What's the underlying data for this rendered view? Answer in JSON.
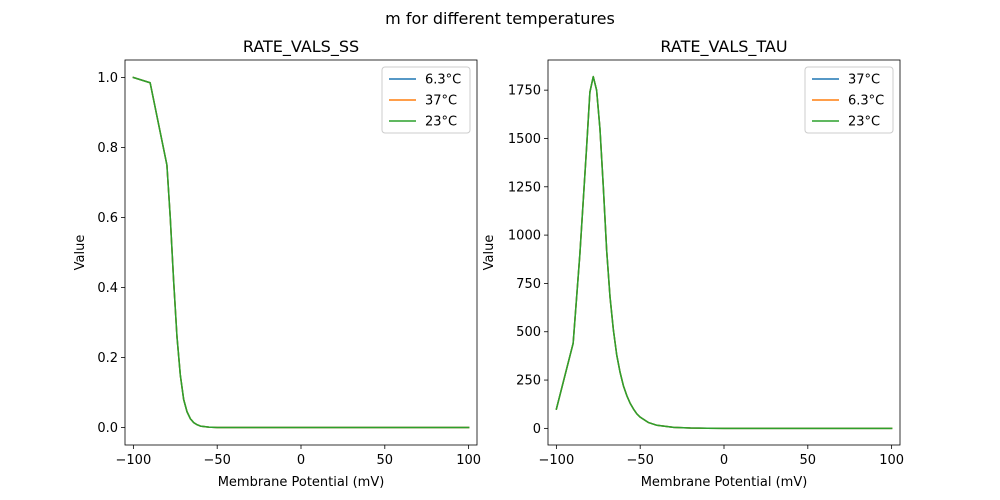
{
  "figure": {
    "suptitle": "m for different temperatures"
  },
  "chart_data": [
    {
      "type": "line",
      "title": "RATE_VALS_SS",
      "xlabel": "Membrane Potential (mV)",
      "ylabel": "Value",
      "xlim": [
        -105,
        105
      ],
      "ylim": [
        -0.05,
        1.05
      ],
      "xticks": [
        -100,
        -50,
        0,
        50,
        100
      ],
      "xtick_labels": [
        "−100",
        "−50",
        "0",
        "50",
        "100"
      ],
      "yticks": [
        0.0,
        0.2,
        0.4,
        0.6,
        0.8,
        1.0
      ],
      "ytick_labels": [
        "0.0",
        "0.2",
        "0.4",
        "0.6",
        "0.8",
        "1.0"
      ],
      "grid": false,
      "legend": "top-right",
      "x": [
        -100,
        -90,
        -80,
        -78,
        -76,
        -74,
        -72,
        -70,
        -68,
        -66,
        -64,
        -62,
        -60,
        -55,
        -50,
        0,
        50,
        100
      ],
      "series": [
        {
          "name": "6.3°C",
          "color": "#1f77b4",
          "values": [
            1.0,
            0.985,
            0.75,
            0.6,
            0.42,
            0.26,
            0.15,
            0.08,
            0.045,
            0.025,
            0.014,
            0.008,
            0.004,
            0.001,
            0.0,
            0.0,
            0.0,
            0.0
          ]
        },
        {
          "name": "37°C",
          "color": "#ff7f0e",
          "values": [
            1.0,
            0.985,
            0.75,
            0.6,
            0.42,
            0.26,
            0.15,
            0.08,
            0.045,
            0.025,
            0.014,
            0.008,
            0.004,
            0.001,
            0.0,
            0.0,
            0.0,
            0.0
          ]
        },
        {
          "name": "23°C",
          "color": "#2ca02c",
          "values": [
            1.0,
            0.985,
            0.75,
            0.6,
            0.42,
            0.26,
            0.15,
            0.08,
            0.045,
            0.025,
            0.014,
            0.008,
            0.004,
            0.001,
            0.0,
            0.0,
            0.0,
            0.0
          ]
        }
      ]
    },
    {
      "type": "line",
      "title": "RATE_VALS_TAU",
      "xlabel": "Membrane Potential (mV)",
      "ylabel": "Value",
      "xlim": [
        -105,
        105
      ],
      "ylim": [
        -86,
        1906
      ],
      "xticks": [
        -100,
        -50,
        0,
        50,
        100
      ],
      "xtick_labels": [
        "−100",
        "−50",
        "0",
        "50",
        "100"
      ],
      "yticks": [
        0,
        250,
        500,
        750,
        1000,
        1250,
        1500,
        1750
      ],
      "ytick_labels": [
        "0",
        "250",
        "500",
        "750",
        "1000",
        "1250",
        "1500",
        "1750"
      ],
      "grid": false,
      "legend": "top-right",
      "x": [
        -100,
        -90,
        -86,
        -82,
        -80,
        -78,
        -76,
        -74,
        -72,
        -70,
        -68,
        -66,
        -64,
        -62,
        -60,
        -58,
        -56,
        -54,
        -52,
        -50,
        -45,
        -40,
        -30,
        -20,
        -10,
        0,
        50,
        100
      ],
      "series": [
        {
          "name": "37°C",
          "color": "#1f77b4",
          "values": [
            100,
            440,
            900,
            1450,
            1740,
            1820,
            1750,
            1550,
            1250,
            920,
            680,
            510,
            380,
            290,
            220,
            170,
            130,
            100,
            75,
            58,
            30,
            16,
            5,
            2,
            1,
            0,
            0,
            0
          ]
        },
        {
          "name": "6.3°C",
          "color": "#ff7f0e",
          "values": [
            100,
            440,
            900,
            1450,
            1740,
            1820,
            1750,
            1550,
            1250,
            920,
            680,
            510,
            380,
            290,
            220,
            170,
            130,
            100,
            75,
            58,
            30,
            16,
            5,
            2,
            1,
            0,
            0,
            0
          ]
        },
        {
          "name": "23°C",
          "color": "#2ca02c",
          "values": [
            100,
            440,
            900,
            1450,
            1740,
            1820,
            1750,
            1550,
            1250,
            920,
            680,
            510,
            380,
            290,
            220,
            170,
            130,
            100,
            75,
            58,
            30,
            16,
            5,
            2,
            1,
            0,
            0,
            0
          ]
        }
      ]
    }
  ]
}
